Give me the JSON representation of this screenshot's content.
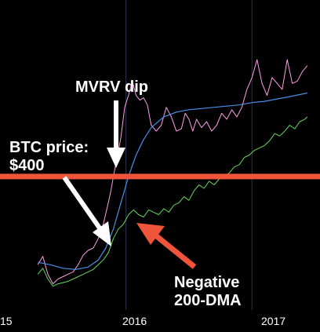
{
  "chart_data": {
    "type": "line",
    "title": "",
    "xlabel": "",
    "ylabel": "",
    "x_ticks": [
      "15",
      "2016",
      "2017"
    ],
    "grid": "vertical",
    "series": [
      {
        "name": "",
        "color": "#ff9ee6",
        "x": [
          2015.3,
          2015.34,
          2015.38,
          2015.42,
          2015.46,
          2015.5,
          2015.54,
          2015.58,
          2015.62,
          2015.66,
          2015.7,
          2015.74,
          2015.78,
          2015.82,
          2015.86,
          2015.88,
          2015.9,
          2015.93,
          2015.96,
          2015.99,
          2016.02,
          2016.05,
          2016.08,
          2016.11,
          2016.14,
          2016.17,
          2016.2,
          2016.24,
          2016.28,
          2016.32,
          2016.36,
          2016.4,
          2016.44,
          2016.47,
          2016.5,
          2016.53,
          2016.56,
          2016.6,
          2016.64,
          2016.68,
          2016.72,
          2016.76,
          2016.8,
          2016.84,
          2016.88,
          2016.92,
          2016.96,
          2017.0,
          2017.04,
          2017.08,
          2017.12,
          2017.16,
          2017.2,
          2017.24,
          2017.28,
          2017.32,
          2017.36,
          2017.4,
          2017.44
        ],
        "y": [
          0.88,
          0.95,
          0.8,
          0.72,
          0.76,
          0.78,
          0.8,
          0.82,
          0.88,
          0.96,
          1.0,
          1.02,
          1.1,
          1.22,
          1.4,
          1.5,
          1.62,
          1.78,
          1.95,
          2.2,
          2.3,
          2.42,
          2.3,
          2.26,
          2.28,
          2.22,
          2.05,
          2.0,
          2.05,
          2.2,
          2.12,
          2.0,
          2.02,
          2.15,
          2.1,
          2.0,
          2.1,
          2.03,
          2.08,
          2.0,
          2.05,
          2.15,
          2.1,
          2.18,
          2.12,
          2.2,
          2.35,
          2.45,
          2.6,
          2.4,
          2.3,
          2.45,
          2.4,
          2.35,
          2.6,
          2.4,
          2.42,
          2.5,
          2.55
        ]
      },
      {
        "name": "",
        "color": "#63d95a",
        "x": [
          2015.3,
          2015.34,
          2015.38,
          2015.42,
          2015.46,
          2015.5,
          2015.54,
          2015.58,
          2015.62,
          2015.66,
          2015.7,
          2015.74,
          2015.78,
          2015.82,
          2015.86,
          2015.9,
          2015.94,
          2015.98,
          2016.02,
          2016.06,
          2016.1,
          2016.14,
          2016.18,
          2016.22,
          2016.26,
          2016.3,
          2016.34,
          2016.38,
          2016.42,
          2016.46,
          2016.5,
          2016.54,
          2016.58,
          2016.62,
          2016.66,
          2016.7,
          2016.74,
          2016.78,
          2016.82,
          2016.86,
          2016.9,
          2016.94,
          2016.98,
          2017.02,
          2017.06,
          2017.1,
          2017.14,
          2017.18,
          2017.22,
          2017.26,
          2017.3,
          2017.34,
          2017.38,
          2017.42,
          2017.44
        ],
        "y": [
          0.8,
          0.85,
          0.76,
          0.7,
          0.72,
          0.73,
          0.74,
          0.76,
          0.78,
          0.8,
          0.82,
          0.84,
          0.88,
          0.92,
          0.98,
          1.1,
          1.18,
          1.22,
          1.3,
          1.34,
          1.3,
          1.28,
          1.34,
          1.32,
          1.3,
          1.35,
          1.32,
          1.38,
          1.4,
          1.45,
          1.42,
          1.5,
          1.55,
          1.52,
          1.58,
          1.55,
          1.6,
          1.62,
          1.65,
          1.7,
          1.72,
          1.78,
          1.8,
          1.84,
          1.86,
          1.88,
          1.92,
          1.98,
          1.96,
          2.0,
          2.05,
          2.02,
          2.08,
          2.1,
          2.12
        ]
      },
      {
        "name": "",
        "color": "#4a8fe8",
        "x": [
          2015.3,
          2015.4,
          2015.5,
          2015.6,
          2015.7,
          2015.78,
          2015.84,
          2015.9,
          2015.96,
          2016.02,
          2016.08,
          2016.14,
          2016.2,
          2016.3,
          2016.4,
          2016.5,
          2016.6,
          2016.7,
          2016.8,
          2016.9,
          2017.0,
          2017.1,
          2017.2,
          2017.3,
          2017.44
        ],
        "y": [
          0.9,
          0.88,
          0.85,
          0.84,
          0.86,
          0.92,
          1.02,
          1.18,
          1.4,
          1.62,
          1.8,
          1.93,
          2.03,
          2.12,
          2.16,
          2.18,
          2.19,
          2.2,
          2.21,
          2.22,
          2.24,
          2.25,
          2.27,
          2.29,
          2.32
        ]
      }
    ],
    "reference_line": {
      "y": 1.62,
      "color": "#f0543a"
    },
    "annotations": [
      {
        "text_lines": [
          "MVRV dip"
        ],
        "color": "#ffffff"
      },
      {
        "text_lines": [
          "BTC price:",
          "$400"
        ],
        "color": "#ffffff"
      },
      {
        "text_lines": [
          "Negative",
          "200-DMA"
        ],
        "color": "#ffffff"
      }
    ],
    "colors": {
      "background": "#000000",
      "grid": "#2a3550",
      "arrow_white": "#ffffff",
      "arrow_red": "#f0543a"
    }
  }
}
